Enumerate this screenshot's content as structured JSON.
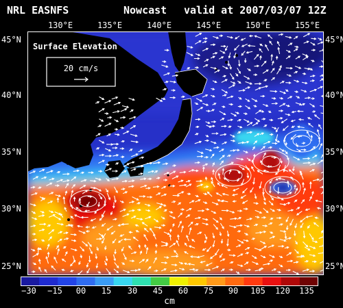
{
  "header": {
    "source": "NRL EASNFS",
    "product": "Nowcast",
    "valid": "valid at 2007/03/07 12Z"
  },
  "map": {
    "lon_labels": [
      "130°E",
      "135°E",
      "140°E",
      "145°E",
      "150°E",
      "155°E"
    ],
    "lat_labels_left": [
      "45°N",
      "40°N",
      "35°N",
      "30°N",
      "25°N"
    ],
    "lat_labels_right": [
      "45°N",
      "40°N",
      "35°N",
      "30°N",
      "25°N"
    ],
    "field_label": "Surface Elevation",
    "vector_scale_label": "20 cm/s"
  },
  "colorbar": {
    "tick_labels": [
      "−30",
      "−15",
      "00",
      "15",
      "30",
      "45",
      "60",
      "75",
      "90",
      "105",
      "120",
      "135"
    ],
    "unit": "cm",
    "colors": [
      "#1a1aa0",
      "#1f2bd0",
      "#2244e8",
      "#2f6cf0",
      "#3a9cf5",
      "#38d6f0",
      "#2ee0b0",
      "#44cc44",
      "#f0f000",
      "#ffc800",
      "#ff9a1a",
      "#ff6a10",
      "#ff3a10",
      "#e81010",
      "#b00808",
      "#700404"
    ]
  },
  "colors": {
    "land": "#000000",
    "vectors": "#ffffff"
  }
}
